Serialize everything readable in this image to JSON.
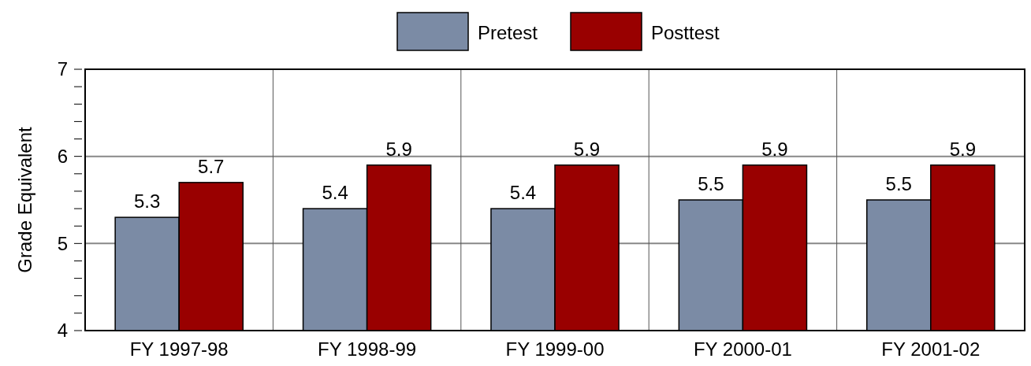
{
  "chart_data": {
    "type": "bar",
    "ylabel": "Grade Equivalent",
    "categories": [
      "FY 1997-98",
      "FY 1998-99",
      "FY 1999-00",
      "FY 2000-01",
      "FY 2001-02"
    ],
    "series": [
      {
        "name": "Pretest",
        "color": "#7b8ba5",
        "values": [
          5.3,
          5.4,
          5.4,
          5.5,
          5.5
        ]
      },
      {
        "name": "Posttest",
        "color": "#990000",
        "values": [
          5.7,
          5.9,
          5.9,
          5.9,
          5.9
        ]
      }
    ],
    "ylim": [
      4,
      7
    ],
    "yticks": [
      4,
      {
        "value": 4.2,
        "label": null
      },
      {
        "value": 4.4,
        "label": null
      },
      {
        "value": 4.6,
        "label": null
      },
      {
        "value": 4.8,
        "label": null
      },
      5,
      {
        "value": 5.2,
        "label": null
      },
      {
        "value": 5.4,
        "label": null
      },
      {
        "value": 5.6,
        "label": null
      },
      {
        "value": 5.8,
        "label": null
      },
      6,
      {
        "value": 6.2,
        "label": null
      },
      {
        "value": 6.4,
        "label": null
      },
      {
        "value": 6.6,
        "label": null
      },
      {
        "value": 6.8,
        "label": null
      },
      7
    ],
    "grid": "y",
    "legend": "top",
    "data_labels": true
  }
}
